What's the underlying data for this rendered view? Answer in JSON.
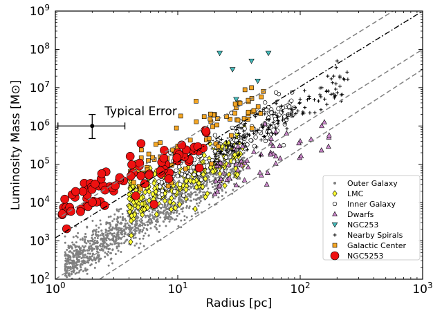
{
  "chart_data": {
    "type": "scatter",
    "xlabel": "Radius [pc]",
    "ylabel": "Luminosity Mass [M",
    "ylabel_unit_symbol": "⊙",
    "ylabel_close": "]",
    "xscale": "log",
    "yscale": "log",
    "xlim": [
      1,
      1000
    ],
    "ylim": [
      100,
      1000000000
    ],
    "x_ticks": [
      1,
      10,
      100,
      1000
    ],
    "x_tick_labels": [
      {
        "base": "10",
        "exp": "0"
      },
      {
        "base": "10",
        "exp": "1"
      },
      {
        "base": "10",
        "exp": "2"
      },
      {
        "base": "10",
        "exp": "3"
      }
    ],
    "y_ticks": [
      100,
      1000,
      10000,
      100000,
      1000000,
      10000000,
      100000000,
      1000000000
    ],
    "y_tick_labels": [
      {
        "base": "10",
        "exp": "2"
      },
      {
        "base": "10",
        "exp": "3"
      },
      {
        "base": "10",
        "exp": "4"
      },
      {
        "base": "10",
        "exp": "5"
      },
      {
        "base": "10",
        "exp": "6"
      },
      {
        "base": "10",
        "exp": "7"
      },
      {
        "base": "10",
        "exp": "8"
      },
      {
        "base": "10",
        "exp": "9"
      }
    ],
    "legend_position": "lower-right",
    "annotation": {
      "text": "Typical Error",
      "point": [
        2,
        1000000
      ],
      "x_error": [
        1.05,
        3.7
      ],
      "y_error": [
        470000,
        2000000
      ]
    },
    "reference_lines": [
      {
        "style": "dash-dot",
        "color": "#000000",
        "points": [
          [
            1,
            1200
          ],
          [
            1000,
            1000000000
          ]
        ]
      },
      {
        "style": "dashed",
        "color": "#808080",
        "points": [
          [
            1,
            3500
          ],
          [
            1000,
            3000000000
          ]
        ]
      },
      {
        "style": "dashed",
        "color": "#808080",
        "points": [
          [
            1,
            100
          ],
          [
            1000,
            100000000
          ]
        ]
      },
      {
        "style": "dashed",
        "color": "#808080",
        "points": [
          [
            2.3,
            100
          ],
          [
            1000,
            30000000
          ]
        ]
      }
    ],
    "series": [
      {
        "name": "Outer Galaxy",
        "marker": "small-dot",
        "color": "#808080",
        "x_range": [
          1.2,
          35
        ],
        "count": 1400,
        "points": [
          [
            1.5,
            200
          ],
          [
            3,
            1000
          ],
          [
            6,
            3000
          ],
          [
            10,
            8000
          ],
          [
            20,
            40000
          ],
          [
            30,
            100000
          ]
        ]
      },
      {
        "name": "LMC",
        "marker": "diamond",
        "color": "#ffff33",
        "x_range": [
          4,
          35
        ],
        "count": 220,
        "points": [
          [
            5,
            6000
          ],
          [
            8,
            20000
          ],
          [
            10,
            30000
          ],
          [
            15,
            60000
          ],
          [
            25,
            100000
          ],
          [
            30,
            50000
          ]
        ]
      },
      {
        "name": "Inner Galaxy",
        "marker": "open-circle",
        "color": "#ffffff",
        "x_range": [
          7,
          90
        ],
        "count": 200,
        "points": [
          [
            8,
            30000
          ],
          [
            15,
            100000
          ],
          [
            30,
            300000
          ],
          [
            60,
            1000000
          ],
          [
            80,
            2000000
          ]
        ]
      },
      {
        "name": "Dwarfs",
        "marker": "triangle-up",
        "color": "#cc88cc",
        "x_range": [
          20,
          180
        ],
        "count": 55,
        "points": [
          [
            30,
            100000
          ],
          [
            60,
            300000
          ],
          [
            100,
            400000
          ],
          [
            150,
            1000000
          ]
        ]
      },
      {
        "name": "NGC253",
        "marker": "triangle-down",
        "color": "#44bbbb",
        "x_range": [
          20,
          55
        ],
        "points": [
          [
            22,
            80000000
          ],
          [
            28,
            30000000
          ],
          [
            30,
            5000000
          ],
          [
            40,
            50000000
          ],
          [
            45,
            15000000
          ],
          [
            55,
            80000000
          ]
        ]
      },
      {
        "name": "Nearby Spirals",
        "marker": "plus",
        "color": "#000000",
        "x_range": [
          20,
          250
        ],
        "count": 150,
        "points": [
          [
            30,
            800000
          ],
          [
            60,
            2000000
          ],
          [
            100,
            5000000
          ],
          [
            150,
            10000000
          ],
          [
            200,
            50000000
          ]
        ]
      },
      {
        "name": "Galactic Center",
        "marker": "square",
        "color": "#f5a623",
        "x_range": [
          4,
          50
        ],
        "count": 80,
        "points": [
          [
            5,
            50000
          ],
          [
            10,
            300000
          ],
          [
            20,
            2000000
          ],
          [
            30,
            3000000
          ],
          [
            40,
            10000000
          ],
          [
            50,
            8000000
          ]
        ]
      },
      {
        "name": "NGC5253",
        "marker": "large-circle",
        "color": "#ee1111",
        "x_range": [
          1.1,
          18
        ],
        "count": 80,
        "points": [
          [
            1.2,
            6000
          ],
          [
            2,
            10000
          ],
          [
            3,
            20000
          ],
          [
            5,
            50000
          ],
          [
            8,
            100000
          ],
          [
            10,
            200000
          ],
          [
            15,
            80000
          ]
        ]
      }
    ]
  }
}
